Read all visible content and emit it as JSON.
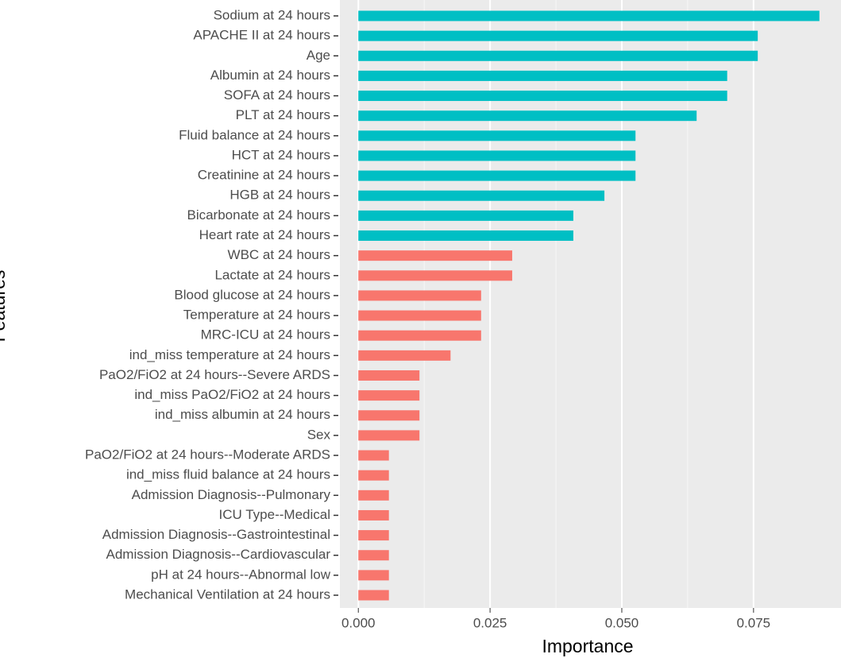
{
  "chart_data": {
    "type": "hbar",
    "x_label": "Importance",
    "y_label": "Features",
    "categories": [
      "Sodium at 24 hours",
      "APACHE II at 24 hours",
      "Age",
      "Albumin at 24 hours",
      "SOFA at 24 hours",
      "PLT at 24 hours",
      "Fluid balance at 24 hours",
      "HCT at 24 hours",
      "Creatinine at 24 hours",
      "HGB at 24 hours",
      "Bicarbonate at 24 hours",
      "Heart rate at 24 hours",
      "WBC at 24 hours",
      "Lactate at 24 hours",
      "Blood glucose at 24 hours",
      "Temperature at 24 hours",
      "MRC-ICU at 24 hours",
      "ind_miss temperature at 24 hours",
      "PaO2/FiO2 at 24 hours--Severe ARDS",
      "ind_miss PaO2/FiO2 at 24 hours",
      "ind_miss albumin at 24 hours",
      "Sex",
      "PaO2/FiO2 at 24 hours--Moderate ARDS",
      "ind_miss fluid balance at 24 hours",
      "Admission Diagnosis--Pulmonary",
      "ICU Type--Medical",
      "Admission Diagnosis--Gastrointestinal",
      "Admission Diagnosis--Cardiovascular",
      "pH at 24 hours--Abnormal low",
      "Mechanical Ventilation at 24 hours"
    ],
    "values": [
      0.0875,
      0.0758,
      0.0758,
      0.07,
      0.07,
      0.0642,
      0.0526,
      0.0526,
      0.0526,
      0.0467,
      0.0408,
      0.0408,
      0.0292,
      0.0292,
      0.0233,
      0.0233,
      0.0233,
      0.0175,
      0.0116,
      0.0116,
      0.0116,
      0.0116,
      0.0058,
      0.0058,
      0.0058,
      0.0058,
      0.0058,
      0.0058,
      0.0058,
      0.0058
    ],
    "colors": [
      "#00BFC4",
      "#00BFC4",
      "#00BFC4",
      "#00BFC4",
      "#00BFC4",
      "#00BFC4",
      "#00BFC4",
      "#00BFC4",
      "#00BFC4",
      "#00BFC4",
      "#00BFC4",
      "#00BFC4",
      "#F8766D",
      "#F8766D",
      "#F8766D",
      "#F8766D",
      "#F8766D",
      "#F8766D",
      "#F8766D",
      "#F8766D",
      "#F8766D",
      "#F8766D",
      "#F8766D",
      "#F8766D",
      "#F8766D",
      "#F8766D",
      "#F8766D",
      "#F8766D",
      "#F8766D",
      "#F8766D"
    ],
    "xlim": [
      -0.0035,
      0.0916
    ],
    "xticks": [
      {
        "value": 0,
        "label": "0.000"
      },
      0.025,
      {
        "value": 0.05,
        "label": "0.050"
      },
      0.075
    ],
    "grid": true,
    "minor_grid": true
  }
}
